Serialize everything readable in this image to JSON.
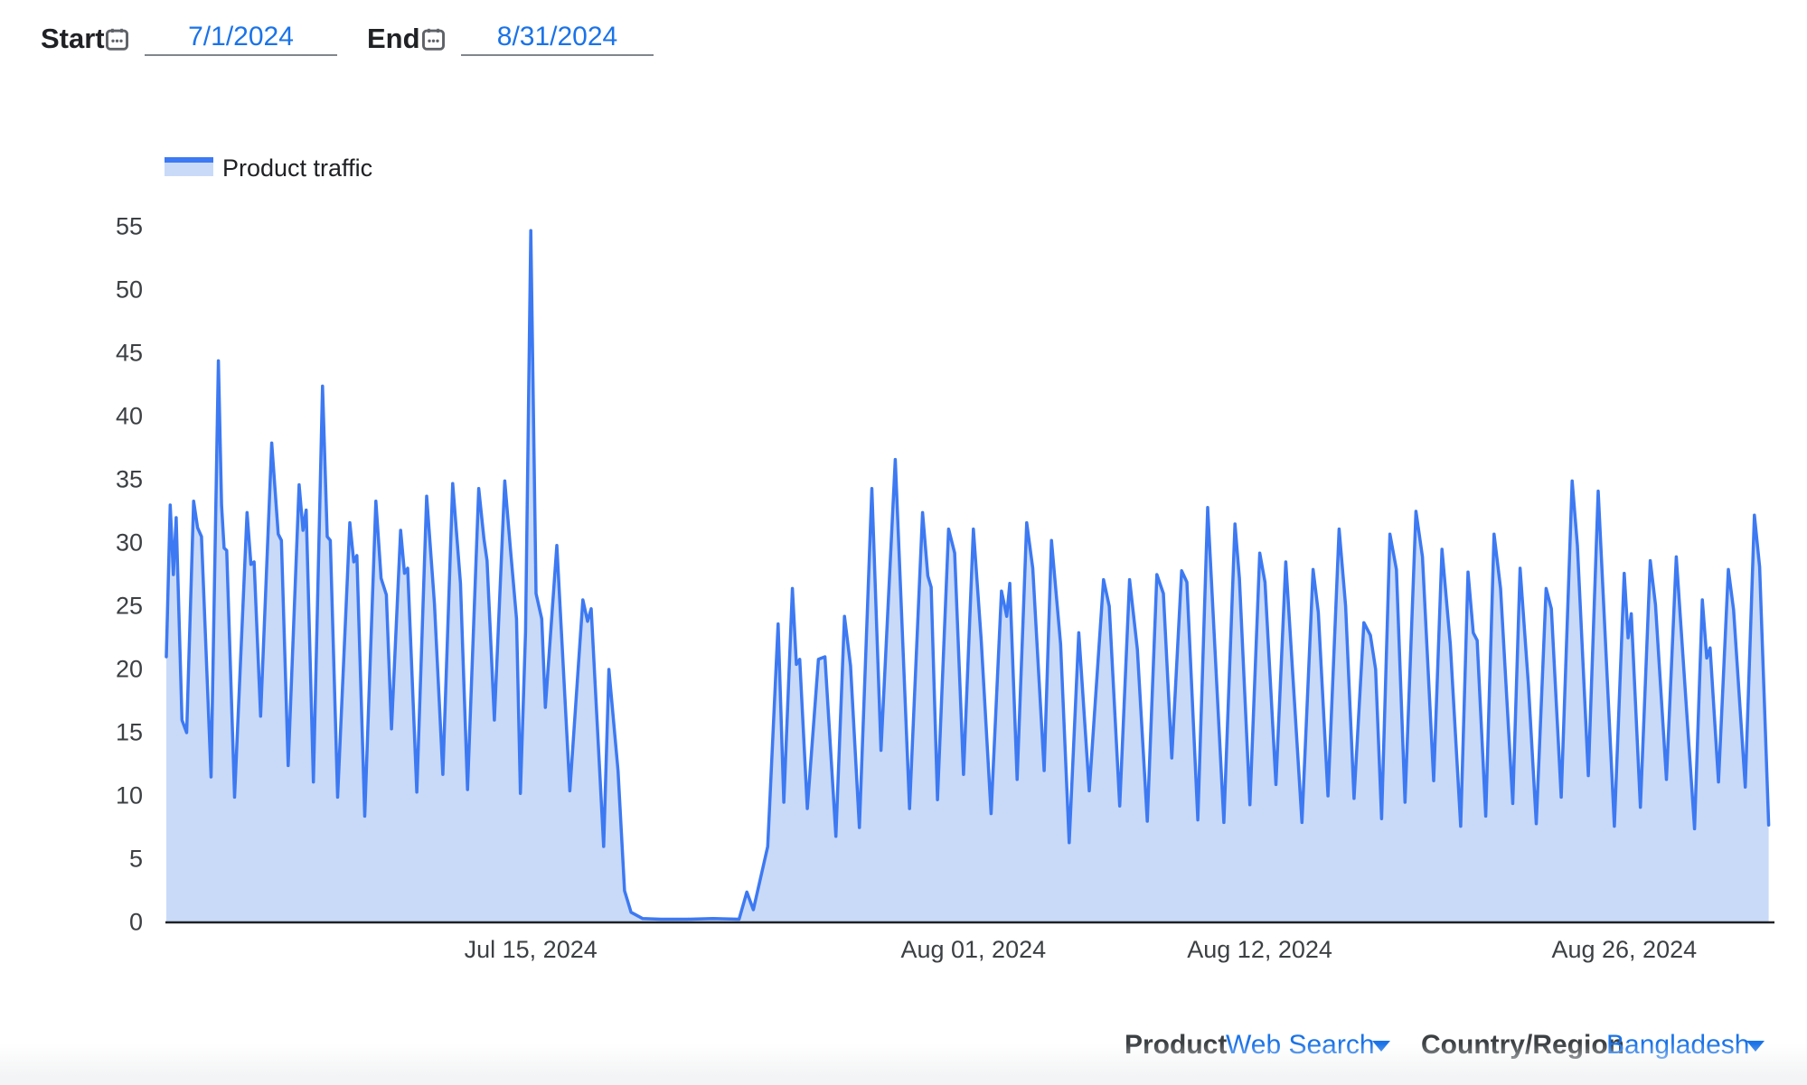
{
  "controls": {
    "start_label": "Start",
    "start_value": "7/1/2024",
    "end_label": "End",
    "end_value": "8/31/2024"
  },
  "legend": {
    "label": "Product traffic"
  },
  "footer": {
    "product_label": "Product",
    "product_value": "Web Search",
    "country_label": "Country/Region",
    "country_value": "Bangladesh"
  },
  "colors": {
    "line": "#3d79f2",
    "fill": "#c9daf8",
    "axis": "#202124",
    "tick_text": "#3c4043",
    "link_blue": "#1a73e8",
    "label_dark": "#202124",
    "underline_gray": "#80868b"
  },
  "chart_data": {
    "type": "area",
    "title": "Product traffic",
    "xlabel": "",
    "ylabel": "",
    "legend_position": "top-left",
    "grid": false,
    "x_range_days": [
      "7/1/2024",
      "8/31/2024"
    ],
    "ylim": [
      0,
      55
    ],
    "y_ticks": [
      0,
      5,
      10,
      15,
      20,
      25,
      30,
      35,
      40,
      45,
      50,
      55
    ],
    "x_ticks": [
      {
        "label": "Jul 15, 2024",
        "day": 14
      },
      {
        "label": "Aug 01, 2024",
        "day": 31
      },
      {
        "label": "Aug 12, 2024",
        "day": 42
      },
      {
        "label": "Aug 26, 2024",
        "day": 56
      }
    ],
    "notes": "day 0 = Jul 1 2024; traffic drops to ~0 from Jul 19 to Jul 23; max spike 54.7 on Jul 15",
    "series": [
      {
        "name": "Product traffic",
        "points": [
          [
            0,
            21
          ],
          [
            0.15,
            33
          ],
          [
            0.27,
            27.5
          ],
          [
            0.38,
            32
          ],
          [
            0.6,
            16
          ],
          [
            0.78,
            15
          ],
          [
            1.05,
            33.3
          ],
          [
            1.2,
            31.2
          ],
          [
            1.35,
            30.5
          ],
          [
            1.72,
            11.5
          ],
          [
            2.0,
            44.4
          ],
          [
            2.12,
            33
          ],
          [
            2.22,
            29.6
          ],
          [
            2.32,
            29.4
          ],
          [
            2.62,
            9.9
          ],
          [
            3.1,
            32.4
          ],
          [
            3.25,
            28.3
          ],
          [
            3.37,
            28.5
          ],
          [
            3.62,
            16.3
          ],
          [
            4.05,
            37.9
          ],
          [
            4.3,
            30.7
          ],
          [
            4.42,
            30.2
          ],
          [
            4.68,
            12.4
          ],
          [
            5.1,
            34.6
          ],
          [
            5.25,
            31
          ],
          [
            5.37,
            32.6
          ],
          [
            5.65,
            11.1
          ],
          [
            6.0,
            42.4
          ],
          [
            6.18,
            30.5
          ],
          [
            6.3,
            30.2
          ],
          [
            6.58,
            9.9
          ],
          [
            7.05,
            31.6
          ],
          [
            7.2,
            28.5
          ],
          [
            7.32,
            29
          ],
          [
            7.62,
            8.4
          ],
          [
            8.05,
            33.3
          ],
          [
            8.25,
            27.2
          ],
          [
            8.45,
            25.9
          ],
          [
            8.65,
            15.3
          ],
          [
            9.0,
            31
          ],
          [
            9.15,
            27.6
          ],
          [
            9.27,
            28
          ],
          [
            9.62,
            10.3
          ],
          [
            10.0,
            33.7
          ],
          [
            10.3,
            25.2
          ],
          [
            10.62,
            11.7
          ],
          [
            11.0,
            34.7
          ],
          [
            11.3,
            26.8
          ],
          [
            11.57,
            10.5
          ],
          [
            12.0,
            34.3
          ],
          [
            12.2,
            30.3
          ],
          [
            12.32,
            28.6
          ],
          [
            12.6,
            16
          ],
          [
            13.0,
            34.9
          ],
          [
            13.22,
            29.5
          ],
          [
            13.45,
            24
          ],
          [
            13.6,
            10.2
          ],
          [
            13.8,
            23
          ],
          [
            14.0,
            54.7
          ],
          [
            14.2,
            26
          ],
          [
            14.42,
            24
          ],
          [
            14.56,
            17
          ],
          [
            15.0,
            29.8
          ],
          [
            15.5,
            10.4
          ],
          [
            16.0,
            25.5
          ],
          [
            16.18,
            23.8
          ],
          [
            16.32,
            24.8
          ],
          [
            16.8,
            6
          ],
          [
            17.0,
            20
          ],
          [
            17.35,
            12
          ],
          [
            17.6,
            2.5
          ],
          [
            17.85,
            0.8
          ],
          [
            18.3,
            0.3
          ],
          [
            19,
            0.25
          ],
          [
            20,
            0.25
          ],
          [
            21,
            0.3
          ],
          [
            22,
            0.25
          ],
          [
            22.3,
            2.4
          ],
          [
            22.55,
            1.0
          ],
          [
            23.1,
            6
          ],
          [
            23.5,
            23.6
          ],
          [
            23.72,
            9.5
          ],
          [
            24.05,
            26.4
          ],
          [
            24.2,
            20.4
          ],
          [
            24.33,
            20.8
          ],
          [
            24.62,
            9
          ],
          [
            25.05,
            20.8
          ],
          [
            25.3,
            21
          ],
          [
            25.72,
            6.8
          ],
          [
            26.05,
            24.2
          ],
          [
            26.28,
            20.3
          ],
          [
            26.62,
            7.5
          ],
          [
            27.1,
            34.3
          ],
          [
            27.45,
            13.6
          ],
          [
            28.0,
            36.6
          ],
          [
            28.55,
            9
          ],
          [
            29.05,
            32.4
          ],
          [
            29.25,
            27.4
          ],
          [
            29.38,
            26.5
          ],
          [
            29.62,
            9.7
          ],
          [
            30.05,
            31.1
          ],
          [
            30.28,
            29.2
          ],
          [
            30.62,
            11.7
          ],
          [
            31.0,
            31.1
          ],
          [
            31.3,
            22.4
          ],
          [
            31.68,
            8.6
          ],
          [
            32.08,
            26.2
          ],
          [
            32.28,
            24.2
          ],
          [
            32.4,
            26.8
          ],
          [
            32.68,
            11.3
          ],
          [
            33.05,
            31.6
          ],
          [
            33.28,
            28
          ],
          [
            33.72,
            12
          ],
          [
            34.0,
            30.2
          ],
          [
            34.35,
            22
          ],
          [
            34.68,
            6.3
          ],
          [
            35.05,
            22.9
          ],
          [
            35.45,
            10.4
          ],
          [
            36.0,
            27.1
          ],
          [
            36.22,
            25
          ],
          [
            36.62,
            9.2
          ],
          [
            37.0,
            27.1
          ],
          [
            37.3,
            21.6
          ],
          [
            37.68,
            8
          ],
          [
            38.05,
            27.5
          ],
          [
            38.3,
            26
          ],
          [
            38.62,
            13
          ],
          [
            39.0,
            27.8
          ],
          [
            39.2,
            26.9
          ],
          [
            39.62,
            8.1
          ],
          [
            40.0,
            32.8
          ],
          [
            40.62,
            7.9
          ],
          [
            41.05,
            31.5
          ],
          [
            41.22,
            27.2
          ],
          [
            41.62,
            9.3
          ],
          [
            42.0,
            29.2
          ],
          [
            42.2,
            26.9
          ],
          [
            42.62,
            10.9
          ],
          [
            43.0,
            28.5
          ],
          [
            43.62,
            7.9
          ],
          [
            44.05,
            27.9
          ],
          [
            44.25,
            24.5
          ],
          [
            44.62,
            10
          ],
          [
            45.05,
            31.1
          ],
          [
            45.3,
            25
          ],
          [
            45.62,
            9.8
          ],
          [
            46.0,
            23.7
          ],
          [
            46.25,
            22.7
          ],
          [
            46.45,
            20
          ],
          [
            46.68,
            8.2
          ],
          [
            47.0,
            30.7
          ],
          [
            47.25,
            27.9
          ],
          [
            47.58,
            9.5
          ],
          [
            48.0,
            32.5
          ],
          [
            48.25,
            28.9
          ],
          [
            48.68,
            11.2
          ],
          [
            49.0,
            29.5
          ],
          [
            49.32,
            22
          ],
          [
            49.72,
            7.6
          ],
          [
            50.0,
            27.7
          ],
          [
            50.2,
            22.9
          ],
          [
            50.35,
            22.3
          ],
          [
            50.68,
            8.4
          ],
          [
            51.0,
            30.7
          ],
          [
            51.25,
            26.4
          ],
          [
            51.72,
            9.4
          ],
          [
            52.0,
            28
          ],
          [
            52.32,
            18.8
          ],
          [
            52.62,
            7.8
          ],
          [
            53.0,
            26.4
          ],
          [
            53.2,
            24.8
          ],
          [
            53.58,
            9.9
          ],
          [
            54.0,
            34.9
          ],
          [
            54.2,
            29.8
          ],
          [
            54.62,
            11.6
          ],
          [
            55.0,
            34.1
          ],
          [
            55.62,
            7.6
          ],
          [
            56.0,
            27.6
          ],
          [
            56.15,
            22.5
          ],
          [
            56.27,
            24.4
          ],
          [
            56.62,
            9.1
          ],
          [
            57.0,
            28.6
          ],
          [
            57.2,
            25.1
          ],
          [
            57.62,
            11.3
          ],
          [
            58.0,
            28.9
          ],
          [
            58.7,
            7.4
          ],
          [
            59.0,
            25.5
          ],
          [
            59.17,
            20.9
          ],
          [
            59.3,
            21.7
          ],
          [
            59.62,
            11.1
          ],
          [
            60.0,
            27.9
          ],
          [
            60.2,
            24.7
          ],
          [
            60.65,
            10.7
          ],
          [
            61.0,
            32.2
          ],
          [
            61.2,
            28.1
          ],
          [
            61.55,
            7.7
          ]
        ]
      }
    ]
  }
}
